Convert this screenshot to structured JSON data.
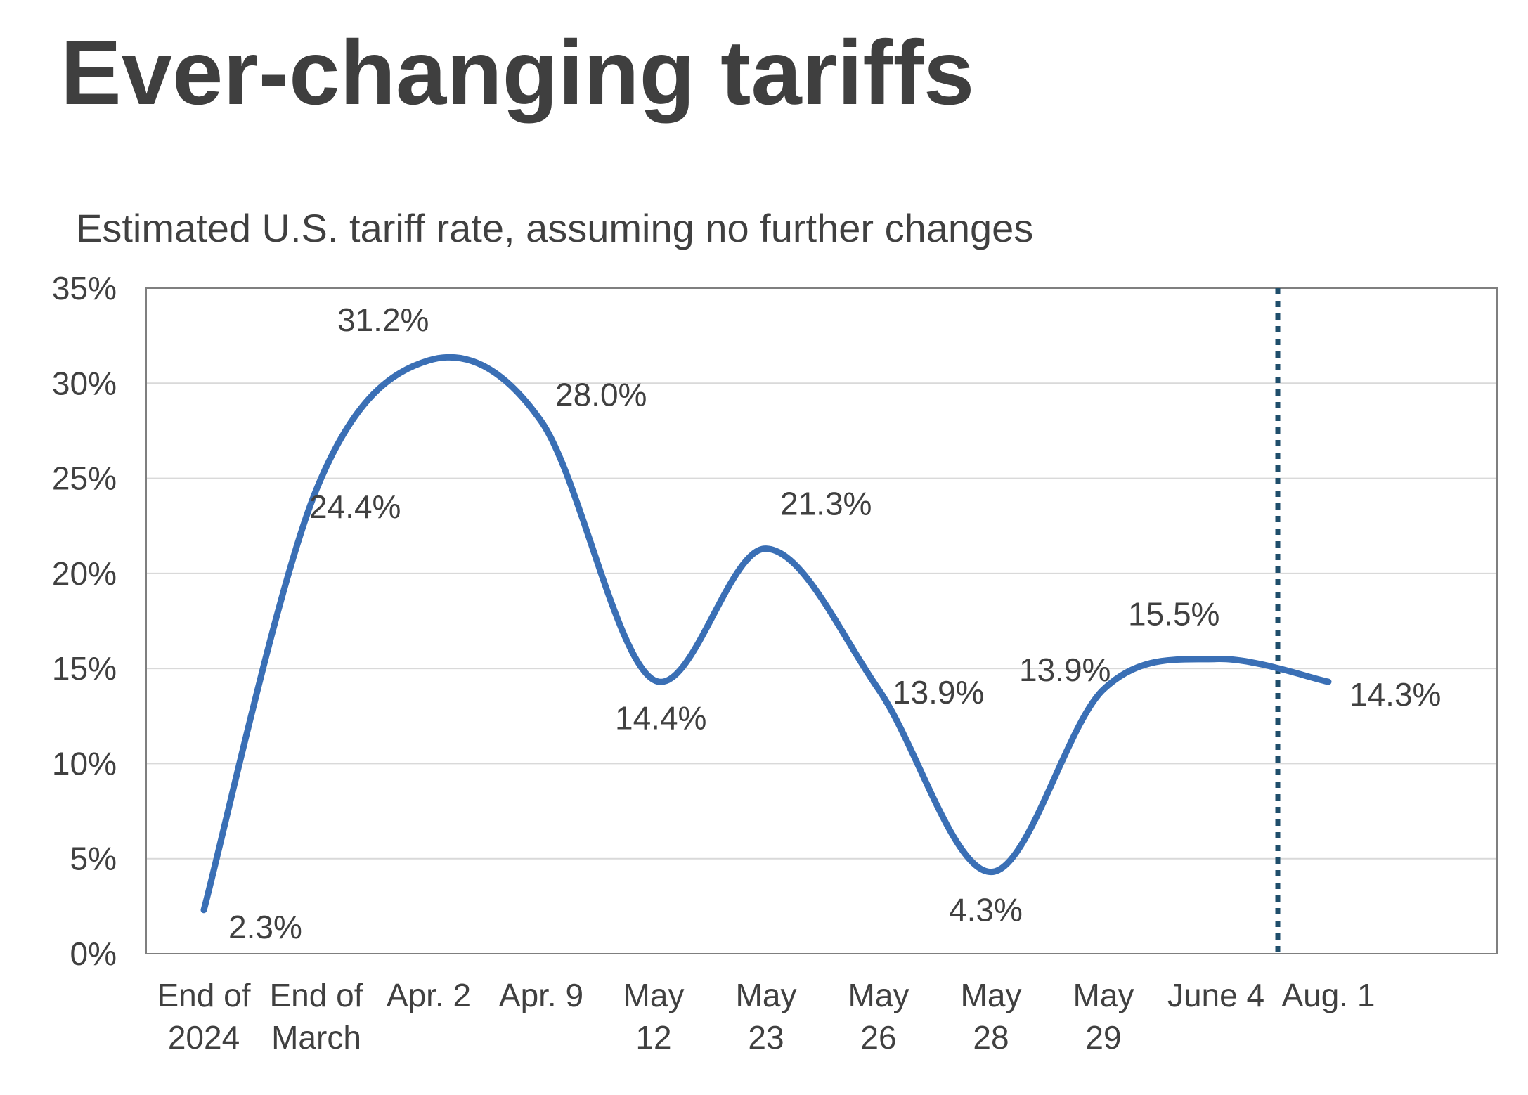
{
  "page": {
    "title": "Ever-changing tariffs"
  },
  "chart_data": {
    "type": "line",
    "title": "Estimated U.S. tariff rate, assuming no further changes",
    "xlabel": "",
    "ylabel": "",
    "categories": [
      [
        "End of",
        "2024"
      ],
      [
        "End of",
        "March"
      ],
      [
        "Apr. 2"
      ],
      [
        "Apr. 9"
      ],
      [
        "May",
        "12"
      ],
      [
        "May",
        "23"
      ],
      [
        "May",
        "26"
      ],
      [
        "May",
        "28"
      ],
      [
        "May",
        "29"
      ],
      [
        "June 4"
      ],
      [
        "Aug. 1"
      ]
    ],
    "x": [
      0,
      1,
      2,
      3,
      4,
      5,
      6,
      7,
      8,
      9,
      10
    ],
    "series": [
      {
        "values": [
          2.3,
          24.4,
          31.2,
          28.0,
          14.4,
          21.3,
          13.9,
          4.3,
          13.9,
          15.5,
          14.3
        ],
        "labels": [
          "2.3%",
          "24.4%",
          "31.2%",
          "28.0%",
          "14.4%",
          "21.3%",
          "13.9%",
          "4.3%",
          "13.9%",
          "15.5%",
          "14.3%"
        ],
        "color": "#3a6fb5"
      }
    ],
    "ylim": [
      0,
      35
    ],
    "yticks": [
      0,
      5,
      10,
      15,
      20,
      25,
      30,
      35
    ],
    "ytick_labels": [
      "0%",
      "5%",
      "10%",
      "15%",
      "20%",
      "25%",
      "30%",
      "35%"
    ],
    "grid": true,
    "smooth": true,
    "reference_line": {
      "style": "dotted",
      "color": "#1f4e6b",
      "between_categories": [
        9,
        10
      ]
    },
    "colors": {
      "line": "#3a6fb5",
      "gridline": "#d9d9d9",
      "frame": "#7f7f7f",
      "text": "#404040"
    }
  }
}
